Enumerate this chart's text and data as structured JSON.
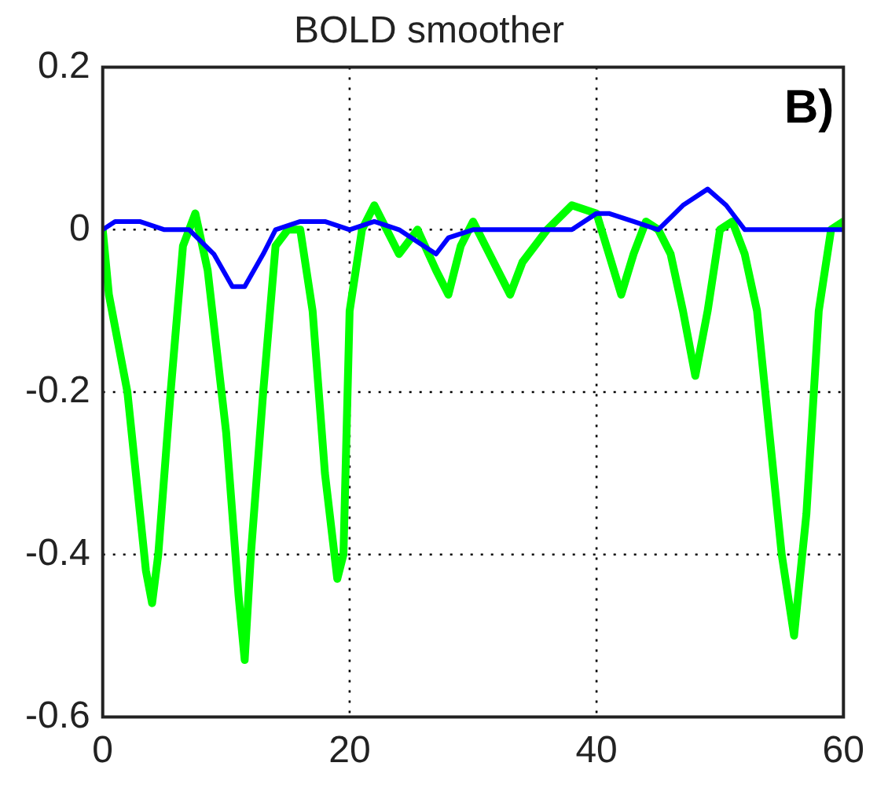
{
  "chart_data": {
    "type": "line",
    "title": "BOLD smoother",
    "annotations": [
      "B)"
    ],
    "xlim": [
      0,
      60
    ],
    "xticks": [
      0,
      20,
      40,
      60
    ],
    "ylim": [
      -0.6,
      0.2
    ],
    "yticks": [
      -0.6,
      -0.4,
      -0.2,
      0,
      0.2
    ],
    "grid": true,
    "line_style": "solid",
    "marker": "none",
    "series": [
      {
        "color": "#0000ff",
        "x": [
          0,
          1,
          3,
          5,
          7,
          9,
          10.5,
          11.5,
          13,
          14,
          16,
          18,
          20,
          22,
          24,
          26,
          27,
          28,
          30,
          32,
          34,
          36,
          38,
          40,
          41,
          43,
          45,
          47,
          49,
          50.5,
          52,
          55,
          58,
          60
        ],
        "values": [
          0,
          0.01,
          0.01,
          0,
          0,
          -0.03,
          -0.07,
          -0.07,
          -0.03,
          0,
          0.01,
          0.01,
          0,
          0.01,
          0,
          -0.02,
          -0.03,
          -0.01,
          0,
          0,
          0,
          0,
          0,
          0.02,
          0.02,
          0.01,
          0,
          0.03,
          0.05,
          0.03,
          0,
          0,
          0,
          0
        ]
      },
      {
        "color": "#00ff00",
        "x": [
          0,
          0.5,
          2,
          3.5,
          4,
          4.5,
          5.5,
          6.5,
          7.5,
          8.5,
          10,
          11,
          11.5,
          12,
          13,
          14,
          15,
          16,
          17,
          18,
          19,
          19.5,
          20,
          21,
          22,
          23,
          24,
          25.5,
          27,
          28,
          29,
          30,
          31,
          32,
          33,
          34,
          36,
          38,
          40,
          41,
          42,
          43,
          44,
          45,
          46,
          47,
          48,
          49,
          50,
          51,
          52,
          53,
          54,
          55,
          56,
          57,
          58,
          59,
          60
        ],
        "values": [
          0,
          -0.08,
          -0.2,
          -0.42,
          -0.46,
          -0.4,
          -0.2,
          -0.02,
          0.02,
          -0.05,
          -0.25,
          -0.45,
          -0.53,
          -0.4,
          -0.2,
          -0.02,
          0,
          0,
          -0.1,
          -0.3,
          -0.43,
          -0.4,
          -0.1,
          0,
          0.03,
          0,
          -0.03,
          0,
          -0.05,
          -0.08,
          -0.02,
          0.01,
          -0.02,
          -0.05,
          -0.08,
          -0.04,
          0,
          0.03,
          0.02,
          -0.03,
          -0.08,
          -0.03,
          0.01,
          0,
          -0.03,
          -0.1,
          -0.18,
          -0.1,
          0,
          0.01,
          -0.03,
          -0.1,
          -0.25,
          -0.4,
          -0.5,
          -0.35,
          -0.1,
          0,
          0.01
        ]
      }
    ]
  }
}
